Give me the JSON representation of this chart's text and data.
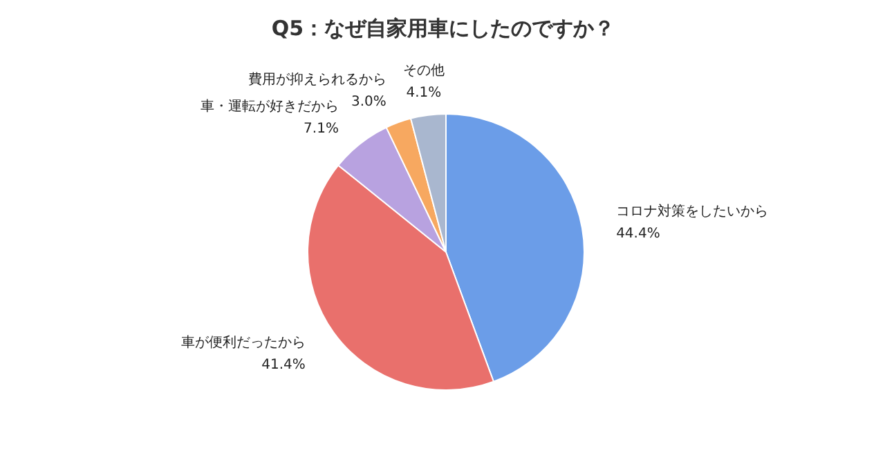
{
  "chart_data": {
    "type": "pie",
    "title": "Q5：なぜ自家用車にしたのですか？",
    "categories": [
      "コロナ対策をしたいから",
      "車が便利だったから",
      "車・運転が好きだから",
      "費用が抑えられるから",
      "その他"
    ],
    "values": [
      44.4,
      41.4,
      7.1,
      3.0,
      4.1
    ],
    "value_labels": [
      "44.4%",
      "41.4%",
      "7.1%",
      "3.0%",
      "4.1%"
    ],
    "colors": [
      "#6b9de8",
      "#e9706c",
      "#b8a2e0",
      "#f7a860",
      "#a9b7cf"
    ]
  }
}
